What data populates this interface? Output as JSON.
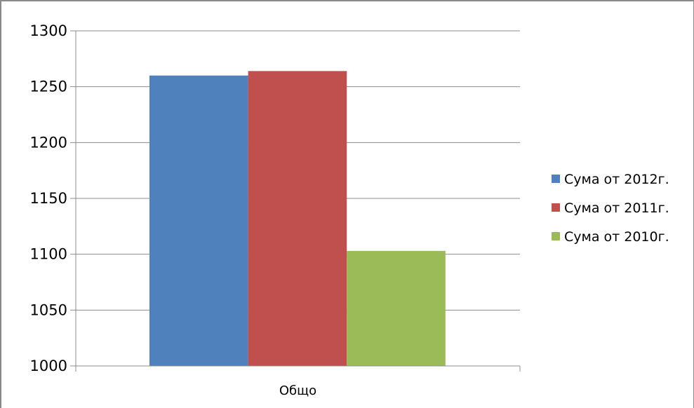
{
  "chart_data": {
    "type": "bar",
    "categories": [
      "Общо"
    ],
    "series": [
      {
        "name": "Сума от 2012г.",
        "values": [
          1260
        ],
        "color": "#4f81bd"
      },
      {
        "name": "Сума от 2011г.",
        "values": [
          1264
        ],
        "color": "#c0504d"
      },
      {
        "name": "Сума от 2010г.",
        "values": [
          1103
        ],
        "color": "#9bbb59"
      }
    ],
    "ylim": [
      1000,
      1300
    ],
    "yticks": [
      1000,
      1050,
      1100,
      1150,
      1200,
      1250,
      1300
    ],
    "grid": true,
    "legend_position": "right",
    "title": "",
    "xlabel": "",
    "ylabel": ""
  }
}
